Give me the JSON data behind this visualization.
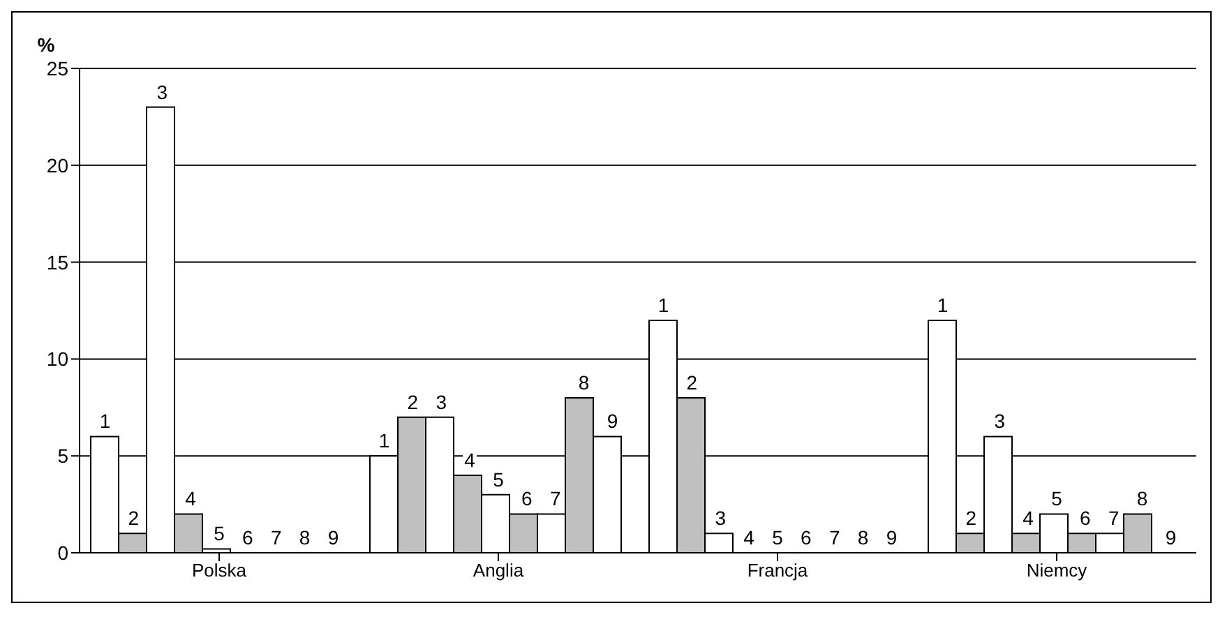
{
  "chart_data": {
    "type": "bar",
    "ylabel": "%",
    "categories": [
      "Polska",
      "Anglia",
      "Francja",
      "Niemcy"
    ],
    "series": [
      {
        "name": "1",
        "color": "#ffffff",
        "values": [
          6,
          5,
          12,
          12
        ]
      },
      {
        "name": "2",
        "color": "#c0c0c0",
        "values": [
          1,
          7,
          8,
          1
        ]
      },
      {
        "name": "3",
        "color": "#ffffff",
        "values": [
          23,
          7,
          1,
          6
        ]
      },
      {
        "name": "4",
        "color": "#c0c0c0",
        "values": [
          2,
          4,
          0,
          1
        ]
      },
      {
        "name": "5",
        "color": "#ffffff",
        "values": [
          0.2,
          3,
          0,
          2
        ]
      },
      {
        "name": "6",
        "color": "#c0c0c0",
        "values": [
          0,
          2,
          0,
          1
        ]
      },
      {
        "name": "7",
        "color": "#ffffff",
        "values": [
          0,
          2,
          0,
          1
        ]
      },
      {
        "name": "8",
        "color": "#c0c0c0",
        "values": [
          0,
          8,
          0,
          2
        ]
      },
      {
        "name": "9",
        "color": "#ffffff",
        "values": [
          0,
          6,
          0,
          0
        ]
      }
    ],
    "ylim": [
      0,
      25
    ],
    "yticks": [
      0,
      5,
      10,
      15,
      20,
      25
    ],
    "grid": "y",
    "legend": false
  }
}
